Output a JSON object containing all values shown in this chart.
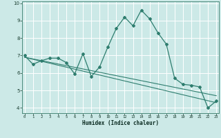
{
  "xlabel": "Humidex (Indice chaleur)",
  "bg_color": "#cce9e7",
  "line_color": "#2e7d6e",
  "grid_color": "#ffffff",
  "series1_x": [
    0,
    1,
    2,
    3,
    4,
    5,
    6,
    7,
    8,
    9,
    10,
    11,
    12,
    13,
    14,
    15,
    16,
    17,
    18,
    19,
    20,
    21,
    22,
    23
  ],
  "series1_y": [
    7.0,
    6.5,
    6.7,
    6.85,
    6.85,
    6.6,
    5.95,
    7.1,
    5.8,
    6.35,
    7.5,
    8.55,
    9.2,
    8.7,
    9.6,
    9.1,
    8.3,
    7.65,
    5.7,
    5.35,
    5.3,
    5.2,
    4.0,
    4.4
  ],
  "series2_x": [
    0,
    23
  ],
  "series2_y": [
    6.9,
    4.7
  ],
  "series3_x": [
    0,
    23
  ],
  "series3_y": [
    6.9,
    4.3
  ],
  "xlim": [
    0,
    23
  ],
  "ylim": [
    3.7,
    10.1
  ],
  "xticks": [
    0,
    1,
    2,
    3,
    4,
    5,
    6,
    7,
    8,
    9,
    10,
    11,
    12,
    13,
    14,
    15,
    16,
    17,
    18,
    19,
    20,
    21,
    22,
    23
  ],
  "yticks": [
    4,
    5,
    6,
    7,
    8,
    9,
    10
  ]
}
